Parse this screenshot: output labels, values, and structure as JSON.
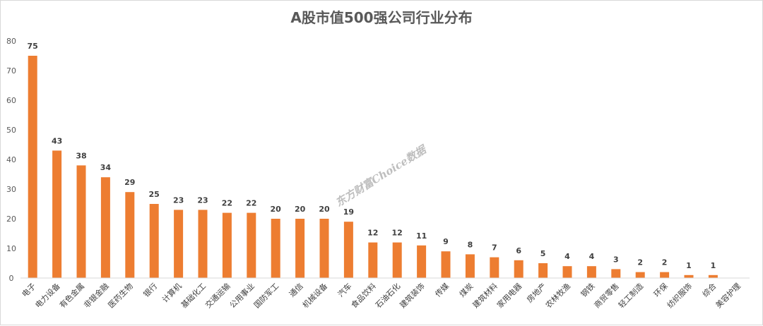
{
  "chart_data": {
    "type": "bar",
    "title": "A股市值500强公司行业分布",
    "xlabel": "",
    "ylabel": "",
    "ylim": [
      0,
      80
    ],
    "yticks": [
      0,
      10,
      20,
      30,
      40,
      50,
      60,
      70,
      80
    ],
    "grid": false,
    "legend": "none",
    "bar_color": "#ED7D31",
    "watermark": "东方财富Choice数据",
    "categories": [
      "电子",
      "电力设备",
      "有色金属",
      "非银金融",
      "医药生物",
      "银行",
      "计算机",
      "基础化工",
      "交通运输",
      "公用事业",
      "国防军工",
      "通信",
      "机械设备",
      "汽车",
      "食品饮料",
      "石油石化",
      "建筑装饰",
      "传媒",
      "煤炭",
      "建筑材料",
      "家用电器",
      "房地产",
      "农林牧渔",
      "钢铁",
      "商贸零售",
      "轻工制造",
      "环保",
      "纺织服饰",
      "综合",
      "美容护理"
    ],
    "values": [
      75,
      43,
      38,
      34,
      29,
      25,
      23,
      23,
      22,
      22,
      20,
      20,
      20,
      19,
      12,
      12,
      11,
      9,
      8,
      7,
      6,
      5,
      4,
      4,
      3,
      2,
      2,
      1,
      1,
      0
    ],
    "data_labels": [
      "75",
      "43",
      "38",
      "34",
      "29",
      "25",
      "23",
      "23",
      "22",
      "22",
      "20",
      "20",
      "20",
      "19",
      "12",
      "12",
      "11",
      "9",
      "8",
      "7",
      "6",
      "5",
      "4",
      "4",
      "3",
      "2",
      "2",
      "1",
      "1",
      ""
    ]
  }
}
